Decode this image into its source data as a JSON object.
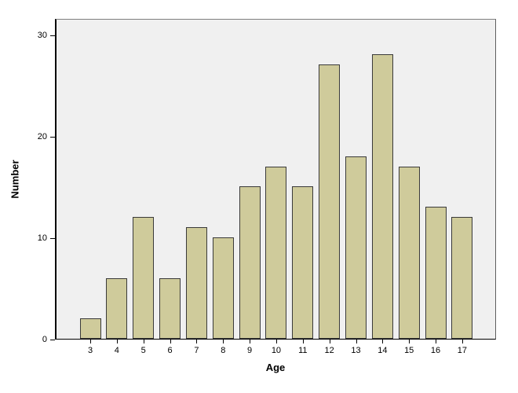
{
  "chart_data": {
    "type": "bar",
    "title": "",
    "xlabel": "Age",
    "ylabel": "Number",
    "categories": [
      "3",
      "4",
      "5",
      "6",
      "7",
      "8",
      "9",
      "10",
      "11",
      "12",
      "13",
      "14",
      "15",
      "16",
      "17"
    ],
    "values": [
      2,
      6,
      12,
      6,
      11,
      10,
      15,
      17,
      15,
      27,
      18,
      28,
      17,
      13,
      12
    ],
    "yticks": [
      0,
      10,
      20,
      30
    ],
    "ylim": [
      0,
      31.6
    ],
    "grid": false,
    "legend": false,
    "bar_color": "#cfcb9b",
    "bar_border_color": "#3a3a3a",
    "plot_bg": "#f0f0f0",
    "frame_color": "#7f7f7f",
    "axis_color": "#000000"
  }
}
